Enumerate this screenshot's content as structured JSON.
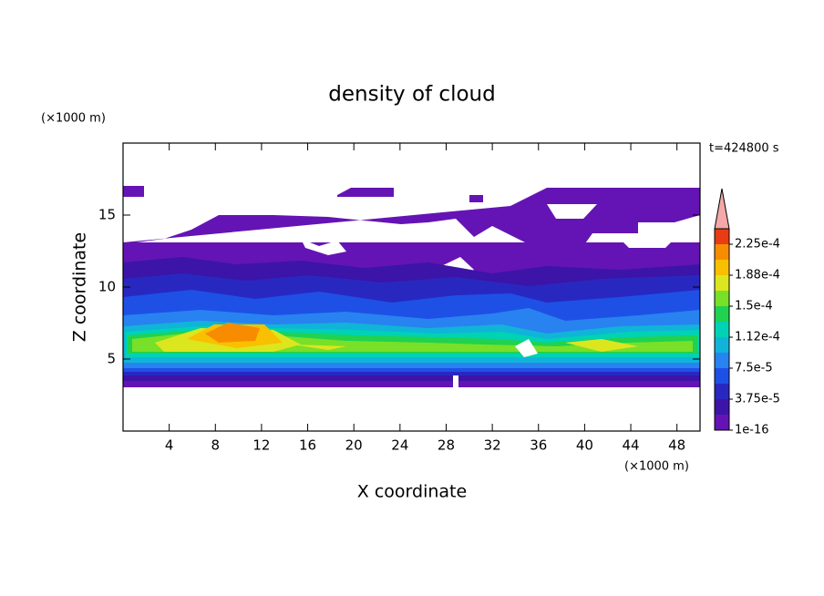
{
  "chart_data": {
    "type": "contour",
    "title": "density of cloud",
    "xlabel": "X coordinate",
    "ylabel": "Z coordinate",
    "xunit": "(×1000 m)",
    "yunit": "(×1000 m)",
    "time": "t=424800 s",
    "xlim": [
      0,
      50
    ],
    "xticks": [
      4,
      8,
      12,
      16,
      20,
      24,
      28,
      32,
      36,
      40,
      44,
      48
    ],
    "ylim": [
      0,
      20
    ],
    "yticks": [
      5,
      10,
      15
    ],
    "colorbar": {
      "lim": [
        1e-16,
        0.00024375
      ],
      "ticks": [
        {
          "value": 1e-16,
          "label": "1e-16"
        },
        {
          "value": 3.75e-05,
          "label": "3.75e-5"
        },
        {
          "value": 7.5e-05,
          "label": "7.5e-5"
        },
        {
          "value": 0.0001125,
          "label": "1.12e-4"
        },
        {
          "value": 0.00015,
          "label": "1.5e-4"
        },
        {
          "value": 0.0001875,
          "label": "1.88e-4"
        },
        {
          "value": 0.000225,
          "label": "2.25e-4"
        }
      ],
      "colors": [
        "#6414b4",
        "#3c14a8",
        "#2828c0",
        "#1e50e6",
        "#2882f0",
        "#10b4d8",
        "#00d2b4",
        "#20d250",
        "#78e028",
        "#dce61e",
        "#f8c000",
        "#f88c00",
        "#e83c14"
      ],
      "extend_color": "#f4a8a8"
    }
  }
}
